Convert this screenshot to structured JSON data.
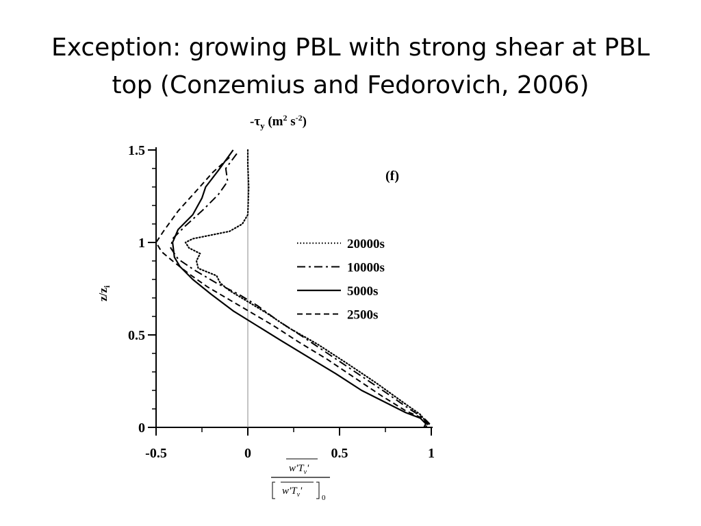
{
  "slide": {
    "title_line1": "Exception:  growing PBL with strong shear at PBL",
    "title_line2": "top (Conzemius and Fedorovich, 2006)"
  },
  "chart_data": {
    "type": "line",
    "panel_label": "(f)",
    "top_label": "-τy (m² s⁻²)",
    "top_label_parts": {
      "prefix": "-τ",
      "sub": "y",
      "unit": " (m",
      "sup1": "2",
      "mid": " s",
      "sup2": "-2",
      "end": ")"
    },
    "ylabel": "z/zi",
    "ylabel_parts": {
      "main": "z/z",
      "sub": "i"
    },
    "xlabel": "[w'Tv'] / [w'Tv']0",
    "xlabel_parts": {
      "w": "w'T",
      "v": "v",
      "prime": "'",
      "zero": "0"
    },
    "xlim": [
      -0.5,
      1.0
    ],
    "ylim": [
      0,
      1.5
    ],
    "x_ticks": [
      -0.5,
      0,
      0.5,
      1
    ],
    "x_tick_labels": [
      "-0.5",
      "0",
      "0.5",
      "1"
    ],
    "y_ticks": [
      0,
      0.5,
      1,
      1.5
    ],
    "y_tick_labels": [
      "0",
      "0.5",
      "1",
      "1.5"
    ],
    "zero_line": 0,
    "legend_position": "center-right",
    "series": [
      {
        "name": "20000s",
        "style": "dotted",
        "points": [
          [
            0.0,
            1.5
          ],
          [
            0.0,
            1.42
          ],
          [
            0.005,
            1.3
          ],
          [
            0.0,
            1.15
          ],
          [
            -0.03,
            1.1
          ],
          [
            -0.1,
            1.06
          ],
          [
            -0.2,
            1.04
          ],
          [
            -0.3,
            1.02
          ],
          [
            -0.34,
            1.0
          ],
          [
            -0.32,
            0.97
          ],
          [
            -0.26,
            0.94
          ],
          [
            -0.28,
            0.9
          ],
          [
            -0.27,
            0.86
          ],
          [
            -0.17,
            0.82
          ],
          [
            -0.15,
            0.78
          ],
          [
            -0.1,
            0.74
          ],
          [
            0.0,
            0.68
          ],
          [
            0.1,
            0.62
          ],
          [
            0.22,
            0.54
          ],
          [
            0.38,
            0.45
          ],
          [
            0.55,
            0.34
          ],
          [
            0.7,
            0.24
          ],
          [
            0.84,
            0.14
          ],
          [
            0.94,
            0.07
          ],
          [
            0.98,
            0.02
          ],
          [
            0.97,
            0.0
          ]
        ]
      },
      {
        "name": "10000s",
        "style": "dashdot",
        "points": [
          [
            -0.06,
            1.48
          ],
          [
            -0.12,
            1.4
          ],
          [
            -0.11,
            1.33
          ],
          [
            -0.16,
            1.26
          ],
          [
            -0.24,
            1.18
          ],
          [
            -0.34,
            1.09
          ],
          [
            -0.41,
            1.02
          ],
          [
            -0.42,
            0.97
          ],
          [
            -0.38,
            0.91
          ],
          [
            -0.29,
            0.85
          ],
          [
            -0.17,
            0.78
          ],
          [
            -0.05,
            0.72
          ],
          [
            0.05,
            0.66
          ],
          [
            0.16,
            0.58
          ],
          [
            0.3,
            0.49
          ],
          [
            0.45,
            0.39
          ],
          [
            0.6,
            0.29
          ],
          [
            0.75,
            0.19
          ],
          [
            0.88,
            0.1
          ],
          [
            0.96,
            0.05
          ],
          [
            0.99,
            0.02
          ],
          [
            0.97,
            0.0
          ]
        ]
      },
      {
        "name": "5000s",
        "style": "solid",
        "points": [
          [
            -0.08,
            1.5
          ],
          [
            -0.16,
            1.39
          ],
          [
            -0.23,
            1.3
          ],
          [
            -0.25,
            1.24
          ],
          [
            -0.3,
            1.15
          ],
          [
            -0.38,
            1.07
          ],
          [
            -0.41,
            1.0
          ],
          [
            -0.4,
            0.92
          ],
          [
            -0.37,
            0.87
          ],
          [
            -0.3,
            0.8
          ],
          [
            -0.2,
            0.72
          ],
          [
            -0.08,
            0.63
          ],
          [
            0.05,
            0.55
          ],
          [
            0.18,
            0.47
          ],
          [
            0.33,
            0.38
          ],
          [
            0.48,
            0.29
          ],
          [
            0.62,
            0.2
          ],
          [
            0.76,
            0.13
          ],
          [
            0.86,
            0.08
          ],
          [
            0.94,
            0.05
          ],
          [
            0.97,
            0.02
          ],
          [
            0.96,
            0.0
          ]
        ]
      },
      {
        "name": "2500s",
        "style": "dashed",
        "points": [
          [
            -0.1,
            1.46
          ],
          [
            -0.19,
            1.38
          ],
          [
            -0.28,
            1.28
          ],
          [
            -0.38,
            1.17
          ],
          [
            -0.46,
            1.06
          ],
          [
            -0.5,
            1.0
          ],
          [
            -0.47,
            0.95
          ],
          [
            -0.41,
            0.9
          ],
          [
            -0.32,
            0.83
          ],
          [
            -0.22,
            0.76
          ],
          [
            -0.1,
            0.69
          ],
          [
            0.02,
            0.62
          ],
          [
            0.14,
            0.55
          ],
          [
            0.28,
            0.46
          ],
          [
            0.43,
            0.37
          ],
          [
            0.58,
            0.27
          ],
          [
            0.73,
            0.17
          ],
          [
            0.86,
            0.09
          ],
          [
            0.95,
            0.05
          ],
          [
            0.98,
            0.02
          ],
          [
            0.96,
            0.0
          ]
        ]
      }
    ]
  }
}
